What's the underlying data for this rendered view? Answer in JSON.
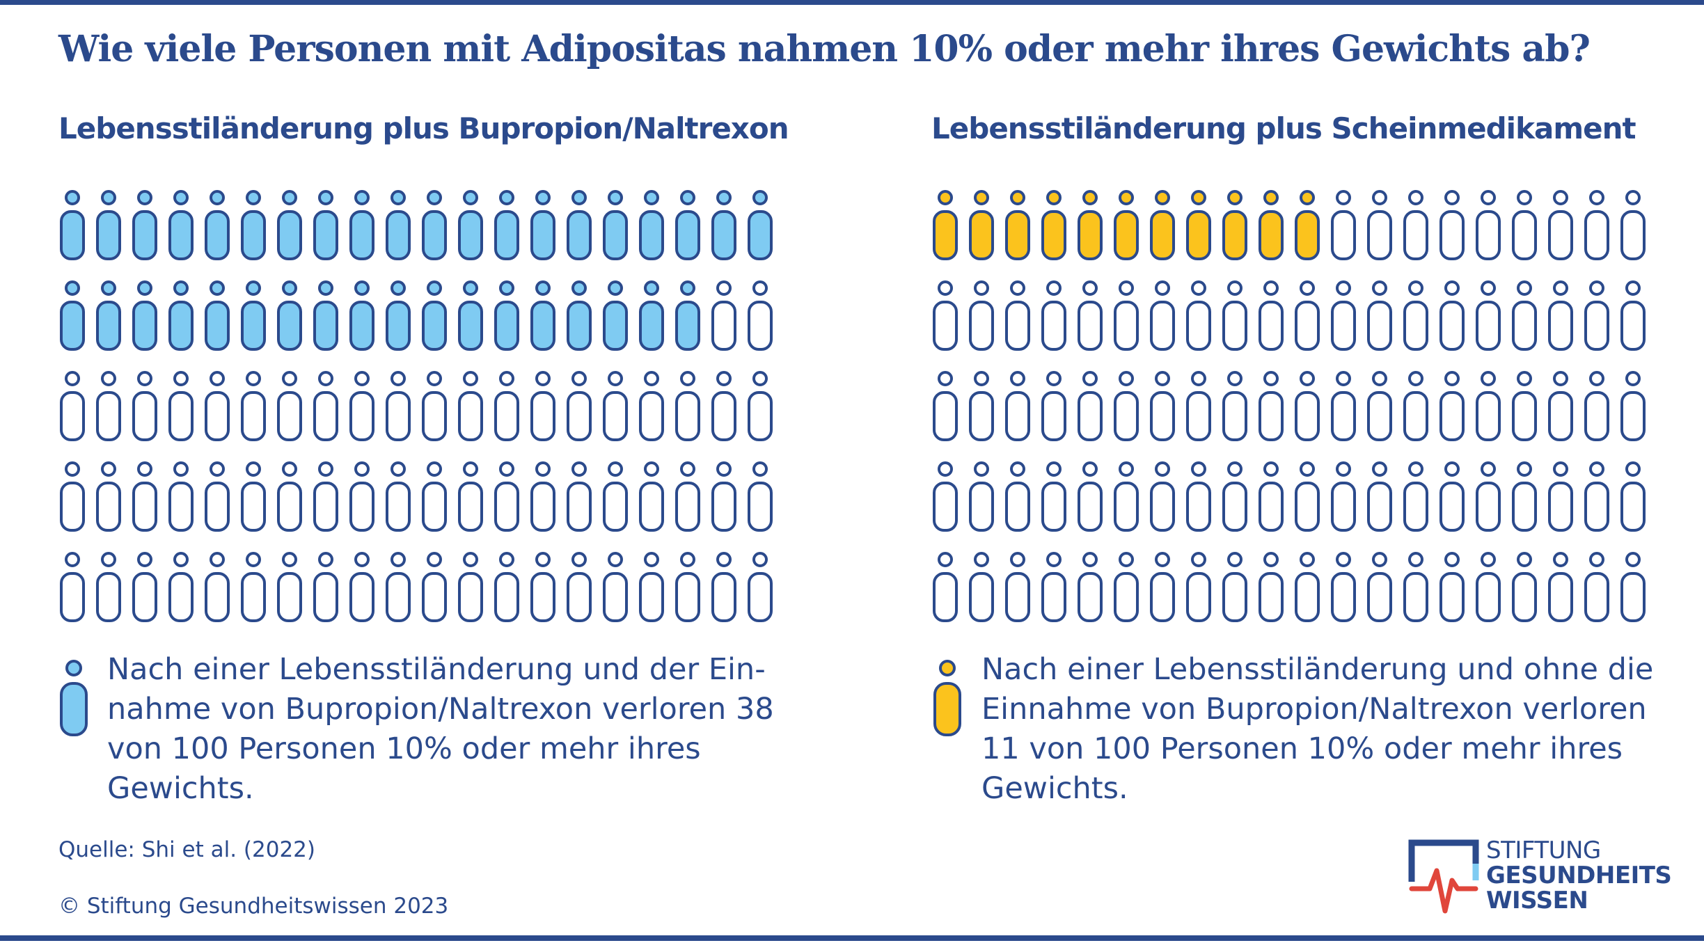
{
  "title": "Wie viele Personen mit Adipositas nahmen 10% oder mehr ihres Gewichts ab?",
  "chart_data": [
    {
      "type": "pictogram",
      "title": "Lebensstiländerung plus Bupropion/Naltrexon",
      "total": 100,
      "value": 38,
      "columns": 20,
      "rows": 5,
      "fill_color": "#7fcbf2",
      "outline_color": "#2b4a8c",
      "legend_text": "Nach einer Lebensstiländerung und der Ein-nahme von Bupropion/Naltrexon verloren 38 von 100 Personen 10% oder mehr ihres Gewichts."
    },
    {
      "type": "pictogram",
      "title": "Lebensstiländerung plus Scheinmedikament",
      "total": 100,
      "value": 11,
      "columns": 20,
      "rows": 5,
      "fill_color": "#fbc31d",
      "outline_color": "#2b4a8c",
      "legend_text": "Nach einer Lebensstiländerung und ohne die Einnahme von Bupropion/Naltrexon verloren 11 von 100 Personen 10% oder mehr ihres Gewichts."
    }
  ],
  "footer": {
    "source": "Quelle: Shi et al. (2022)",
    "copyright": "© Stiftung Gesundheitswissen 2023"
  },
  "logo": {
    "line1": "STIFTUNG",
    "line2": "GESUNDHEITS",
    "line3": "WISSEN"
  },
  "colors": {
    "primary": "#2b4a8c",
    "accent_blue": "#7fcbf2",
    "accent_yellow": "#fbc31d",
    "logo_red": "#e0463b"
  }
}
